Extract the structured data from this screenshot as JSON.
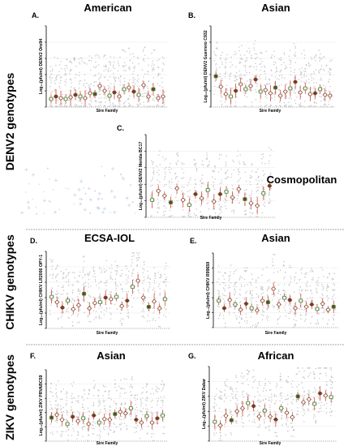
{
  "figure": {
    "section_labels": [
      "DENV2 genotypes",
      "CHIKV genotypes",
      "ZIKV genotypes"
    ],
    "colors": {
      "grid": "#b0b0b0",
      "background_dot": "#c8c8c8",
      "mean_bar": "#d0312d",
      "square_edge": "#3b8a3b",
      "circle_edge": "#7a4a2a",
      "fill_light": "#ffffff",
      "fill_dark": "#6b3e22",
      "cosmo_cross": "#c9d8ea",
      "cosmo_dot": "#d8e4f0",
      "cosmo_dot_pink": "#f0b8c4"
    }
  },
  "chart_data": [
    {
      "type": "scatter",
      "panel": "A.",
      "title": "American",
      "ylabel": "Log₁₀(pfu/ml) DENV2 Oro94",
      "xlabel": "Sire Family",
      "ylim": [
        0,
        10
      ],
      "n_families": 24,
      "values": [
        1.0,
        1.3,
        1.1,
        1.0,
        1.2,
        1.5,
        1.3,
        1.1,
        1.7,
        1.6,
        2.6,
        2.0,
        1.4,
        1.8,
        1.3,
        2.2,
        2.4,
        1.9,
        1.5,
        2.7,
        1.3,
        2.2,
        1.1,
        1.3
      ]
    },
    {
      "type": "scatter",
      "panel": "B.",
      "title": "Asian",
      "ylabel": "Log₁₀(pfu/ml) DENV2 Guerrero C932",
      "xlabel": "Sire Family",
      "ylim": [
        0,
        10
      ],
      "n_families": 24,
      "values": [
        3.8,
        2.5,
        1.6,
        1.3,
        2.0,
        2.8,
        2.2,
        2.6,
        3.4,
        1.9,
        2.1,
        1.7,
        2.4,
        1.4,
        1.9,
        2.3,
        3.1,
        1.8,
        2.3,
        1.6,
        1.7,
        2.2,
        1.5,
        1.4
      ]
    },
    {
      "type": "scatter",
      "panel": "C.",
      "title": "Cosmopolitan",
      "ylabel": "Log₁₀(pfu/ml) DENV2 Merida BC17",
      "xlabel": "Sire Family",
      "ylim": [
        0,
        10
      ],
      "n_families": 20,
      "values": [
        2.1,
        3.2,
        2.6,
        1.8,
        3.5,
        2.1,
        1.5,
        2.8,
        2.3,
        3.3,
        1.9,
        2.8,
        3.1,
        2.4,
        3.4,
        2.2,
        1.7,
        1.4,
        2.9,
        3.8
      ]
    },
    {
      "type": "scatter",
      "panel": "D.",
      "title": "ECSA-IOL",
      "ylabel": "Log₁₀(pfu/ml) CHIKV LR2006 OPY-1",
      "xlabel": "Sire Family",
      "ylim": [
        0,
        10
      ],
      "n_families": 22,
      "values": [
        4.1,
        3.4,
        2.7,
        3.6,
        2.5,
        3.0,
        4.5,
        2.6,
        3.3,
        3.4,
        4.0,
        3.8,
        4.1,
        2.9,
        3.6,
        5.4,
        6.2,
        4.0,
        2.8,
        3.5,
        2.6,
        3.8
      ]
    },
    {
      "type": "scatter",
      "panel": "E.",
      "title": "Asian",
      "ylabel": "Log₁₀(pfu/ml) CHIKV R99659",
      "xlabel": "Sire Family",
      "ylim": [
        0,
        10
      ],
      "n_families": 22,
      "values": [
        3.6,
        2.6,
        3.7,
        3.1,
        2.4,
        3.2,
        2.6,
        2.3,
        3.6,
        3.4,
        5.2,
        3.1,
        4.0,
        3.7,
        2.6,
        3.6,
        2.8,
        3.1,
        2.5,
        3.2,
        2.4,
        2.8
      ]
    },
    {
      "type": "scatter",
      "panel": "F.",
      "title": "Asian",
      "ylabel": "Log₁₀(pfu/ml) ZIKV PRVABC59",
      "xlabel": "Sire Family",
      "ylim": [
        0,
        10
      ],
      "n_families": 22,
      "values": [
        3.3,
        3.7,
        3.0,
        2.4,
        3.4,
        2.8,
        3.2,
        2.4,
        3.6,
        2.6,
        3.1,
        3.0,
        3.8,
        4.1,
        3.9,
        4.6,
        3.0,
        2.6,
        3.5,
        2.6,
        3.2,
        3.6
      ]
    },
    {
      "type": "scatter",
      "panel": "G.",
      "title": "African",
      "ylabel": "Log₁₀(pfu/ml) ZIKV Dakar",
      "xlabel": "Sire Family",
      "ylim": [
        0,
        10
      ],
      "n_families": 22,
      "values": [
        2.6,
        2.1,
        3.4,
        2.8,
        4.0,
        4.4,
        5.1,
        4.7,
        3.3,
        4.1,
        3.3,
        2.9,
        4.4,
        3.8,
        3.2,
        6.0,
        5.2,
        5.6,
        5.0,
        6.4,
        6.1,
        5.9
      ]
    }
  ]
}
